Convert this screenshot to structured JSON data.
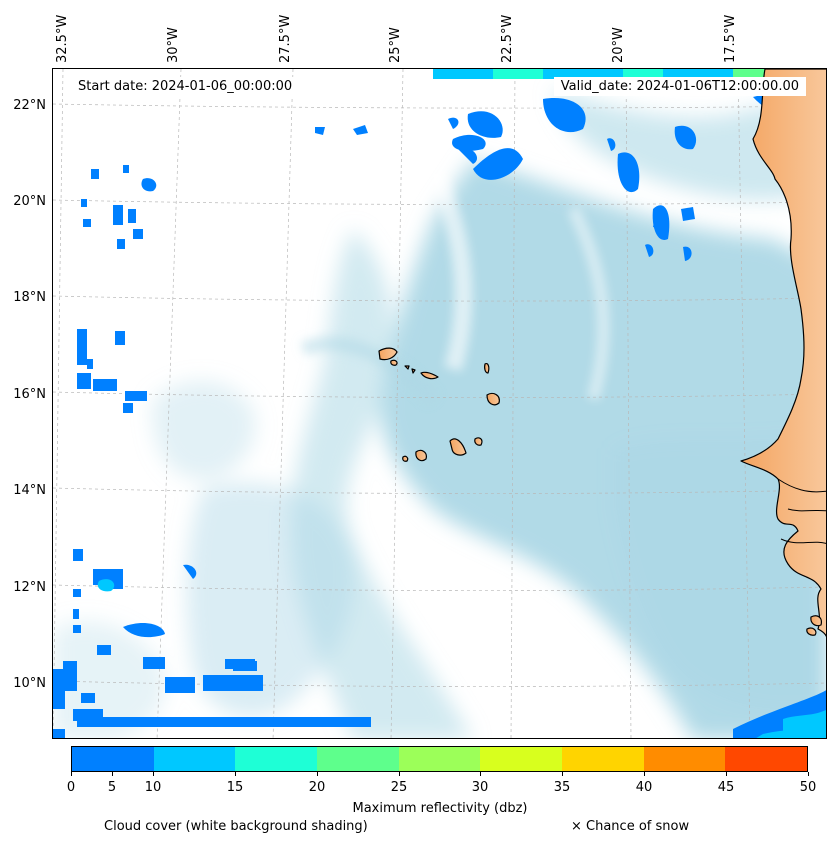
{
  "header": {
    "start_date": "Start date: 2024-01-06_00:00:00",
    "valid_date": "Valid_date: 2024-01-06T12:00:00.00"
  },
  "axes": {
    "longitude_labels": [
      "32.5°W",
      "30°W",
      "27.5°W",
      "25°W",
      "22.5°W",
      "20°W",
      "17.5°W"
    ],
    "latitude_labels": [
      "22°N",
      "20°N",
      "18°N",
      "16°N",
      "14°N",
      "12°N",
      "10°N"
    ]
  },
  "colorbar": {
    "title": "Maximum reflectivity (dbz)",
    "ticks": [
      "0",
      "5",
      "10",
      "15",
      "20",
      "25",
      "30",
      "35",
      "40",
      "45",
      "50"
    ],
    "bins": [
      {
        "from": 0,
        "to": 10,
        "color": "#0080ff"
      },
      {
        "from": 10,
        "to": 15,
        "color": "#00c8ff"
      },
      {
        "from": 15,
        "to": 20,
        "color": "#1effd6"
      },
      {
        "from": 20,
        "to": 25,
        "color": "#5eff8c"
      },
      {
        "from": 25,
        "to": 30,
        "color": "#9cff59"
      },
      {
        "from": 30,
        "to": 35,
        "color": "#d8ff1e"
      },
      {
        "from": 35,
        "to": 40,
        "color": "#ffd400"
      },
      {
        "from": 40,
        "to": 45,
        "color": "#ff8c00"
      },
      {
        "from": 45,
        "to": 50,
        "color": "#ff4800"
      }
    ]
  },
  "legend": {
    "cloud_cover": "Cloud cover (white background shading)",
    "snow": "× Chance of snow"
  },
  "colors": {
    "land": "#f4a460",
    "ocean_cloud_shading": "#add8e6",
    "reflectivity_low": "#0080ff"
  }
}
